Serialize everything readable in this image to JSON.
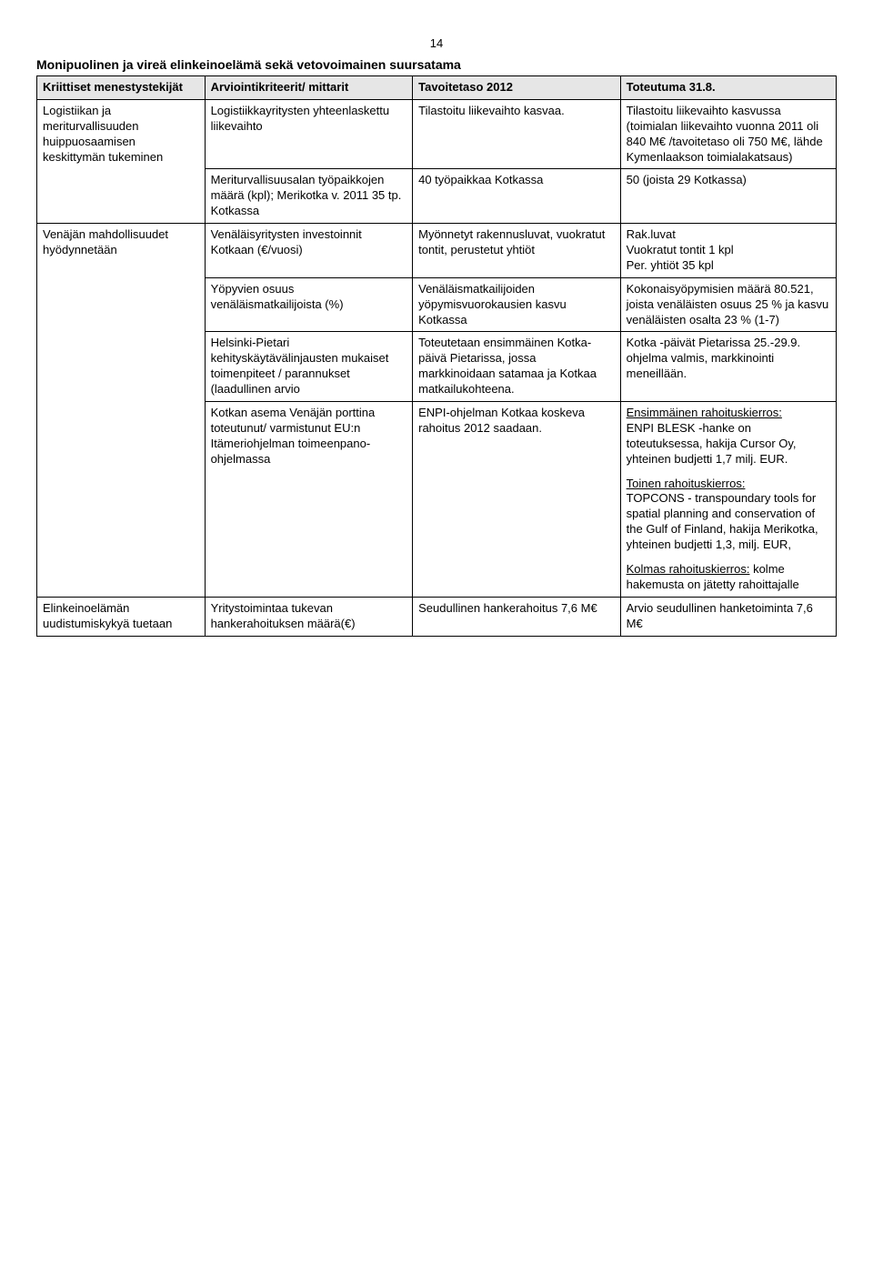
{
  "page_number": "14",
  "title": "Monipuolinen ja vireä elinkeinoelämä sekä vetovoimainen suursatama",
  "headers": {
    "h1": "Kriittiset menestystekijät",
    "h2": "Arviointikriteerit/ mittarit",
    "h3": "Tavoitetaso 2012",
    "h4": "Toteutuma 31.8."
  },
  "row1": {
    "c1": "Logistiikan ja meriturvallisuuden huippuosaamisen keskittymän tukeminen",
    "c2": "Logistiikkayritysten yhteenlaskettu liikevaihto",
    "c3": "Tilastoitu liikevaihto kasvaa.",
    "c4": "Tilastoitu liikevaihto kasvussa (toimialan liikevaihto vuonna 2011 oli 840 M€ /tavoitetaso oli 750 M€, lähde Kymenlaakson toimialakatsaus)"
  },
  "row2": {
    "c2": "Meriturvallisuusalan työpaikkojen määrä (kpl); Merikotka v. 2011 35 tp. Kotkassa",
    "c3": "40 työpaikkaa Kotkassa",
    "c4": "50 (joista 29 Kotkassa)"
  },
  "row3": {
    "c1": "Venäjän mahdollisuudet hyödynnetään",
    "c2": "Venäläisyritysten investoinnit Kotkaan (€/vuosi)",
    "c3": "Myönnetyt rakennusluvat, vuokratut tontit, perustetut yhtiöt",
    "c4a": "Rak.luvat",
    "c4b": "Vuokratut tontit 1 kpl",
    "c4c": "Per. yhtiöt 35 kpl"
  },
  "row4": {
    "c2": "Yöpyvien osuus venäläismatkailijoista (%)",
    "c3": "Venäläismatkailijoiden yöpymisvuorokausien kasvu Kotkassa",
    "c4": "Kokonaisyöpymisien määrä 80.521, joista venäläisten osuus 25 % ja kasvu venäläisten osalta 23 % (1-7)"
  },
  "row5": {
    "c2": "Helsinki-Pietari kehityskäytävälinjausten mukaiset toimenpiteet / parannukset (laadullinen arvio",
    "c3": "Toteutetaan ensimmäinen Kotka-päivä Pietarissa, jossa markkinoidaan satamaa ja Kotkaa matkailukohteena.",
    "c4": "Kotka -päivät Pietarissa 25.-29.9. ohjelma valmis, markkinointi meneillään."
  },
  "row6": {
    "c2": "Kotkan asema Venäjän porttina toteutunut/ varmistunut EU:n Itämeriohjelman toimeenpano-ohjelmassa",
    "c3": "ENPI-ohjelman Kotkaa koskeva rahoitus 2012 saadaan.",
    "c4_p1_label": "Ensimmäinen rahoituskierros:",
    "c4_p1_text": "ENPI BLESK -hanke on toteutuksessa, hakija Cursor Oy, yhteinen budjetti 1,7 milj. EUR.",
    "c4_p2_label": "Toinen rahoituskierros:",
    "c4_p2_text": "TOPCONS - transpoundary tools for spatial planning and conservation of the Gulf of Finland, hakija Merikotka, yhteinen budjetti 1,3, milj. EUR,",
    "c4_p3_label": "Kolmas rahoituskierros:",
    "c4_p3_text": " kolme hakemusta on jätetty rahoittajalle"
  },
  "row7": {
    "c1": "Elinkeinoelämän uudistumiskykyä tuetaan",
    "c2": "Yritystoimintaa tukevan hankerahoituksen määrä(€)",
    "c3": "Seudullinen hankerahoitus 7,6 M€",
    "c4": "Arvio seudullinen hanketoiminta 7,6 M€"
  }
}
